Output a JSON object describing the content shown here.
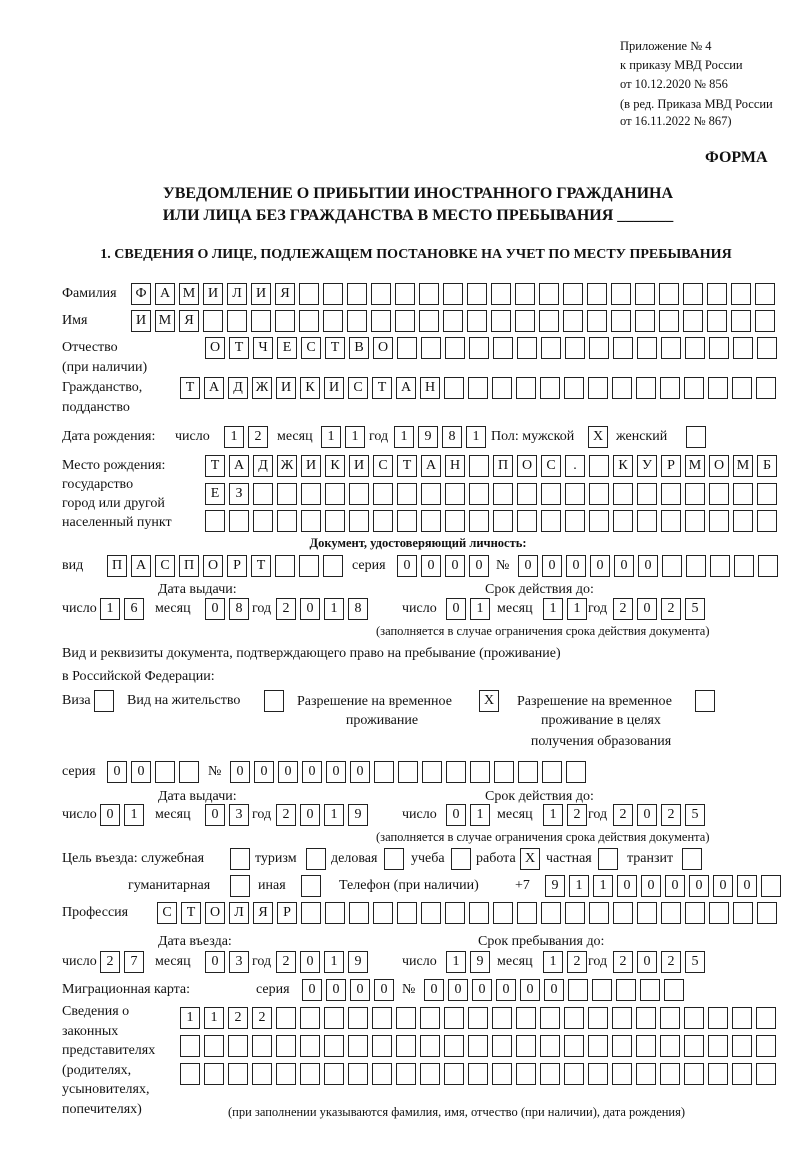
{
  "header": {
    "annex": "Приложение № 4",
    "order": "к приказу МВД России",
    "order_date": "от 10.12.2020 № 856",
    "revision_1": "(в ред. Приказа МВД России",
    "revision_2": "от 16.11.2022 № 867)"
  },
  "form_label": "ФОРМА",
  "title_line1": "УВЕДОМЛЕНИЕ О ПРИБЫТИИ ИНОСТРАННОГО ГРАЖДАНИНА",
  "title_line2": "ИЛИ ЛИЦА БЕЗ ГРАЖДАНСТВА В МЕСТО ПРЕБЫВАНИЯ _______",
  "section1_title": "1. СВЕДЕНИЯ О ЛИЦЕ, ПОДЛЕЖАЩЕМ ПОСТАНОВКЕ НА УЧЕТ ПО МЕСТУ ПРЕБЫВАНИЯ",
  "labels": {
    "surname": "Фамилия",
    "name": "Имя",
    "patronymic": "Отчество",
    "patronymic_note": "(при наличии)",
    "citizenship": "Гражданство,",
    "citizenship_2": "подданство",
    "birth_date": "Дата рождения:",
    "day": "число",
    "month": "месяц",
    "year": "год",
    "sex": "Пол: мужской",
    "female": "женский",
    "birth_place_1": "Место рождения:",
    "birth_place_2": "государство",
    "birth_place_3": "город или другой",
    "birth_place_4": "населенный пункт",
    "id_doc": "Документ, удостоверяющий личность:",
    "kind": "вид",
    "series": "серия",
    "number": "№",
    "issue_date": "Дата выдачи:",
    "valid_until": "Срок действия до:",
    "validity_note": "(заполняется в случае ограничения срока действия документа)",
    "right_doc_1": "Вид и реквизиты документа, подтверждающего право на пребывание (проживание)",
    "right_doc_2": "в Российской Федерации:",
    "visa": "Виза",
    "residence_permit": "Вид на жительство",
    "temp_residence_1": "Разрешение на временное",
    "temp_residence_2": "проживание",
    "temp_edu_1": "Разрешение на временное",
    "temp_edu_2": "проживание в целях",
    "temp_edu_3": "получения образования",
    "purpose": "Цель въезда: служебная",
    "tourism": "туризм",
    "business": "деловая",
    "study": "учеба",
    "work": "работа",
    "private": "частная",
    "transit": "транзит",
    "humanitarian": "гуманитарная",
    "other": "иная",
    "phone": "Телефон (при наличии)",
    "phone_prefix": "+7",
    "profession": "Профессия",
    "entry_date": "Дата въезда:",
    "stay_until": "Срок пребывания до:",
    "migration_card": "Миграционная карта:",
    "reps_1": "Сведения о",
    "reps_2": "законных",
    "reps_3": "представителях",
    "reps_4": "(родителях,",
    "reps_5": "усыновителях,",
    "reps_6": "попечителях)",
    "reps_note": "(при заполнении указываются фамилия, имя, отчество (при наличии), дата рождения)"
  },
  "values": {
    "surname": "ФАМИЛИЯ",
    "name": "ИМЯ",
    "patronymic": "ОТЧЕСТВО",
    "citizenship": "ТАДЖИКИСТАН",
    "birth_day": "12",
    "birth_month": "11",
    "birth_year": "1981",
    "sex_male": "X",
    "sex_female": "",
    "birth_place_1": "ТАДЖИКИСТАН ПОС. КУРМОМБ",
    "birth_place_2": "ЕЗ",
    "birth_place_3": "",
    "id_kind": "ПАСПОРТ",
    "id_series": "0000",
    "id_number": "000000",
    "id_issue_day": "16",
    "id_issue_month": "08",
    "id_issue_year": "2018",
    "id_valid_day": "01",
    "id_valid_month": "11",
    "id_valid_year": "2025",
    "visa": "",
    "residence_permit": "",
    "temp_residence": "X",
    "temp_edu": "",
    "right_series": "00",
    "right_number": "000000",
    "right_issue_day": "01",
    "right_issue_month": "03",
    "right_issue_year": "2019",
    "right_valid_day": "01",
    "right_valid_month": "12",
    "right_valid_year": "2025",
    "purpose_official": "",
    "purpose_tourism": "",
    "purpose_business": "",
    "purpose_study": "",
    "purpose_work": "X",
    "purpose_private": "",
    "purpose_transit": "",
    "purpose_humanitarian": "",
    "purpose_other": "",
    "phone": "911000000",
    "profession": "СТОЛЯР",
    "entry_day": "27",
    "entry_month": "03",
    "entry_year": "2019",
    "stay_day": "19",
    "stay_month": "12",
    "stay_year": "2025",
    "mc_series": "0000",
    "mc_number": "000000",
    "reps_1": "1122",
    "reps_2": "",
    "reps_3": ""
  }
}
